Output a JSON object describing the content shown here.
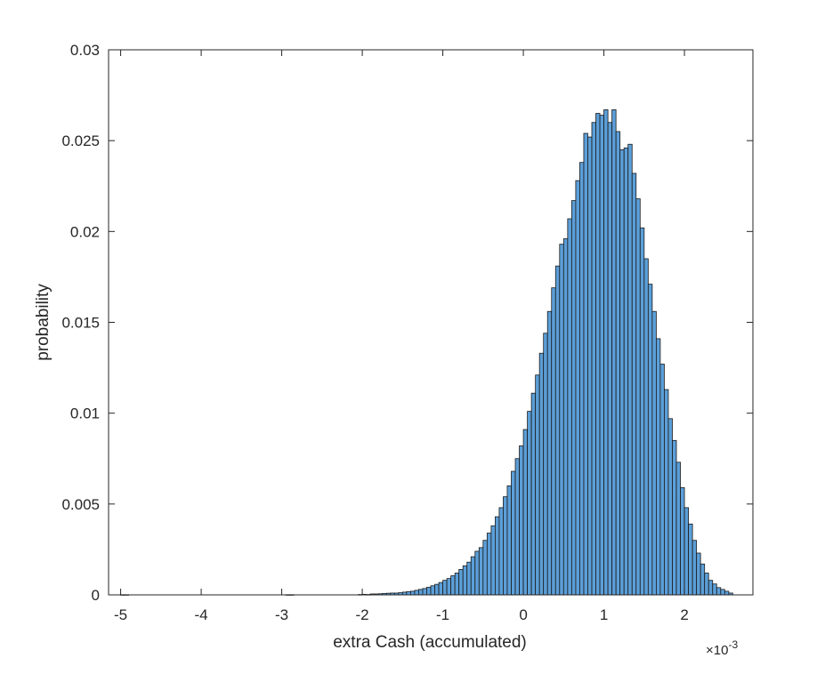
{
  "chart_data": {
    "type": "histogram",
    "xlabel": "extra Cash (accumulated)",
    "ylabel": "probability",
    "x_exponent_label": "×10",
    "x_exponent_power": "-3",
    "xlim": [
      -5.15,
      2.85
    ],
    "ylim": [
      0,
      0.03
    ],
    "x_ticks": [
      -5,
      -4,
      -3,
      -2,
      -1,
      0,
      1,
      2
    ],
    "x_tick_labels": [
      "-5",
      "-4",
      "-3",
      "-2",
      "-1",
      "0",
      "1",
      "2"
    ],
    "y_ticks": [
      0,
      0.005,
      0.01,
      0.015,
      0.02,
      0.025,
      0.03
    ],
    "y_tick_labels": [
      "0",
      "0.005",
      "0.01",
      "0.015",
      "0.02",
      "0.025",
      "0.03"
    ],
    "bin_width": 0.05,
    "bin_start": -5.0,
    "bar_color": "#5c9fd8",
    "edge_color": "#1a1a1a",
    "grid": false,
    "values": [
      1e-05,
      1e-05,
      0,
      0,
      0,
      0,
      0,
      0,
      0,
      0,
      0,
      0,
      0,
      0,
      0,
      0,
      0,
      0,
      0,
      0,
      0,
      0,
      0,
      0,
      0,
      0,
      0,
      0,
      0,
      0,
      0,
      0,
      0,
      0,
      0,
      0,
      0,
      0,
      0,
      0,
      0,
      1e-05,
      1e-05,
      0,
      0,
      0,
      0,
      0,
      0,
      0,
      0,
      0,
      0,
      0,
      0,
      0,
      0,
      0,
      0,
      2e-05,
      3e-05,
      2e-05,
      5e-05,
      5e-05,
      6e-05,
      8e-05,
      9e-05,
      0.0001,
      0.0001,
      0.00012,
      0.00015,
      0.00018,
      0.0002,
      0.00025,
      0.0003,
      0.00035,
      0.00042,
      0.0005,
      0.00058,
      0.00068,
      0.0008,
      0.0009,
      0.00105,
      0.0012,
      0.0014,
      0.0016,
      0.0018,
      0.0021,
      0.0024,
      0.0026,
      0.003,
      0.0034,
      0.0038,
      0.0043,
      0.0048,
      0.0054,
      0.006,
      0.0068,
      0.0075,
      0.0082,
      0.0091,
      0.0101,
      0.0111,
      0.0121,
      0.0133,
      0.0144,
      0.0156,
      0.0169,
      0.0181,
      0.0193,
      0.0196,
      0.0207,
      0.0217,
      0.0228,
      0.0238,
      0.0254,
      0.0252,
      0.026,
      0.0265,
      0.0264,
      0.0267,
      0.026,
      0.0267,
      0.0255,
      0.0245,
      0.0246,
      0.0248,
      0.0232,
      0.0218,
      0.0202,
      0.0185,
      0.0171,
      0.0156,
      0.0141,
      0.0127,
      0.0113,
      0.0097,
      0.0085,
      0.0073,
      0.0059,
      0.0048,
      0.0039,
      0.003,
      0.0023,
      0.0017,
      0.0012,
      0.0008,
      0.0006,
      0.0004,
      0.0003,
      0.0002,
      0.0001
    ]
  }
}
